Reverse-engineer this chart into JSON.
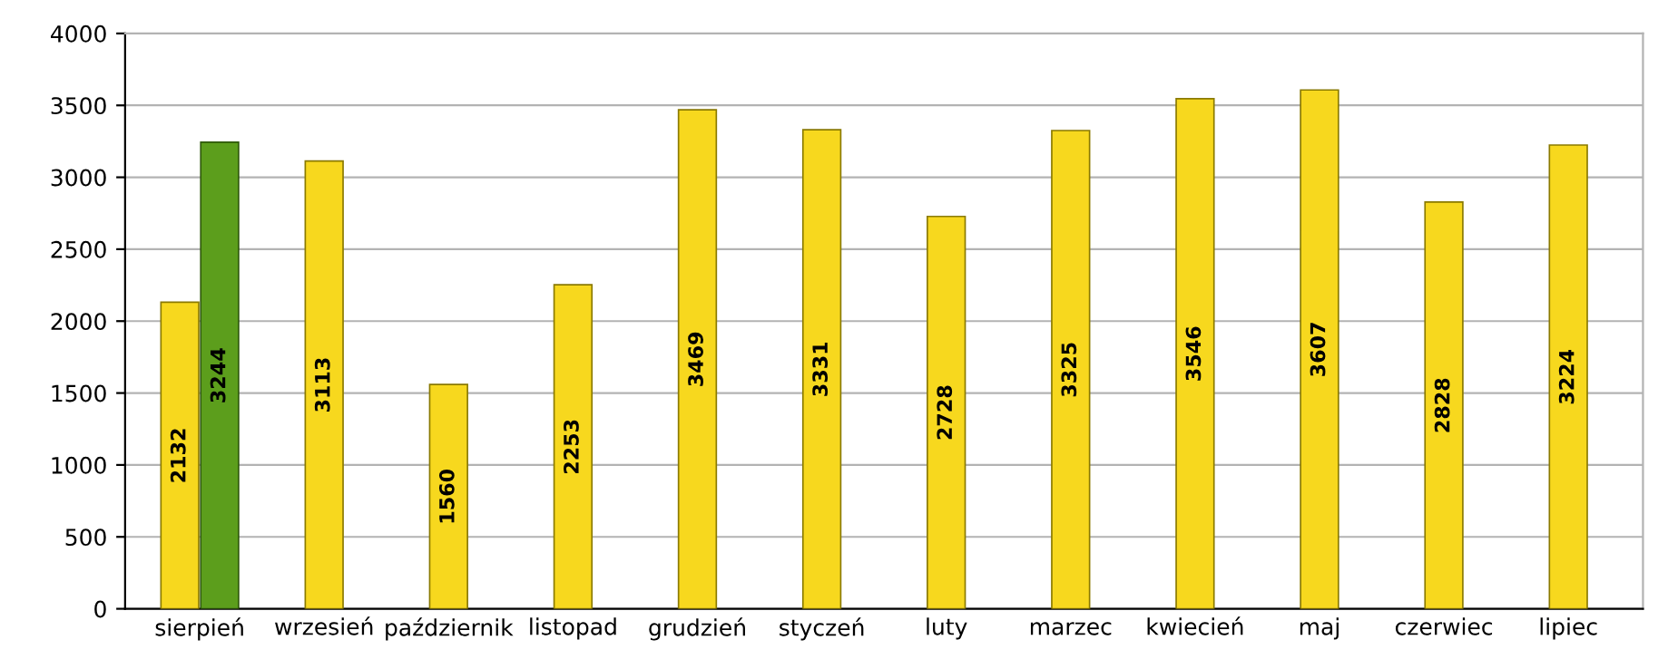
{
  "chart_data": {
    "type": "bar",
    "categories": [
      "sierpień",
      "wrzesień",
      "październik",
      "listopad",
      "grudzień",
      "styczeń",
      "luty",
      "marzec",
      "kwiecień",
      "maj",
      "czerwiec",
      "lipiec"
    ],
    "series": [
      {
        "color": "#f7d81e",
        "values": [
          2132,
          3113,
          1560,
          2253,
          3469,
          3331,
          2728,
          3325,
          3546,
          3607,
          2828,
          3224
        ]
      },
      {
        "color": "#5c9e1c",
        "values": [
          3244,
          null,
          null,
          null,
          null,
          null,
          null,
          null,
          null,
          null,
          null,
          null
        ]
      }
    ],
    "ylim": [
      0,
      4000
    ],
    "yticks": [
      0,
      500,
      1000,
      1500,
      2000,
      2500,
      3000,
      3500,
      4000
    ],
    "grid": "y",
    "data_labels": true
  }
}
